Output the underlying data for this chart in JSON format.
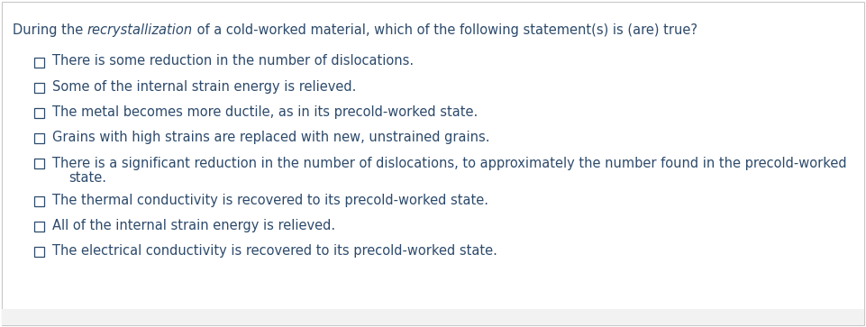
{
  "bg_color": "#ffffff",
  "border_color": "#c8c8c8",
  "footer_color": "#f2f2f2",
  "text_color": "#2d4a6b",
  "font_size": 10.5,
  "title_font_size": 10.5,
  "options": [
    "There is some reduction in the number of dislocations.",
    "Some of the internal strain energy is relieved.",
    "The metal becomes more ductile, as in its precold-worked state.",
    "Grains with high strains are replaced with new, unstrained grains.",
    "There is a significant reduction in the number of dislocations, to approximately the number found in the precold-worked\n        state.",
    "The thermal conductivity is recovered to its precold-worked state.",
    "All of the internal strain energy is relieved.",
    "The electrical conductivity is recovered to its precold-worked state."
  ],
  "option_has_wrap": [
    false,
    false,
    false,
    false,
    true,
    false,
    false,
    false
  ]
}
